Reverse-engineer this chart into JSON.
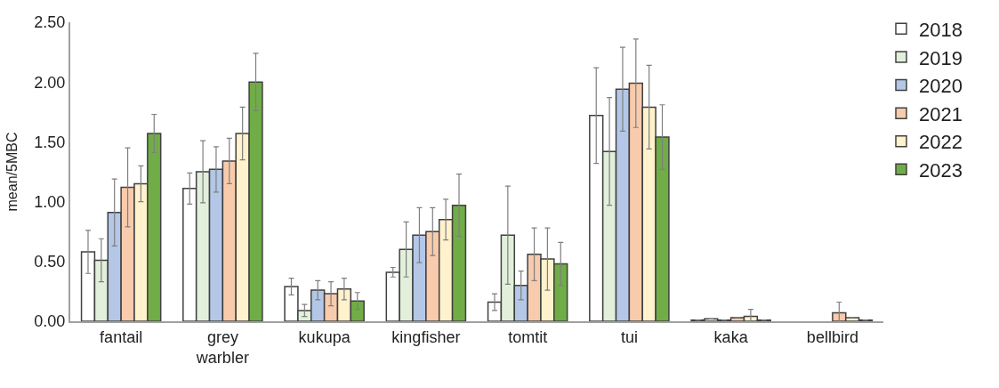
{
  "chart_data": {
    "type": "bar",
    "ylabel": "mean/5MBC",
    "categories": [
      "fantail",
      "grey\nwarbler",
      "kukupa",
      "kingfisher",
      "tomtit",
      "tui",
      "kaka",
      "bellbird"
    ],
    "series": [
      {
        "name": "2018",
        "color": "#ffffff",
        "values": [
          0.58,
          1.11,
          0.29,
          0.41,
          0.16,
          1.72,
          0.01,
          null
        ],
        "errors": [
          0.18,
          0.13,
          0.07,
          0.04,
          0.07,
          0.4,
          null,
          null
        ]
      },
      {
        "name": "2019",
        "color": "#e2efda",
        "values": [
          0.51,
          1.25,
          0.09,
          0.6,
          0.72,
          1.42,
          0.02,
          null
        ],
        "errors": [
          0.18,
          0.26,
          0.05,
          0.23,
          0.41,
          0.45,
          null,
          null
        ]
      },
      {
        "name": "2020",
        "color": "#b4c7e7",
        "values": [
          0.91,
          1.27,
          0.26,
          0.72,
          0.3,
          1.94,
          0.01,
          null
        ],
        "errors": [
          0.28,
          0.19,
          0.08,
          0.23,
          0.12,
          0.35,
          null,
          null
        ]
      },
      {
        "name": "2021",
        "color": "#f8cbad",
        "values": [
          1.12,
          1.34,
          0.23,
          0.75,
          0.56,
          1.99,
          0.03,
          0.07
        ],
        "errors": [
          0.33,
          0.19,
          0.1,
          0.2,
          0.22,
          0.37,
          null,
          0.09
        ]
      },
      {
        "name": "2022",
        "color": "#fff2cc",
        "values": [
          1.15,
          1.57,
          0.27,
          0.85,
          0.52,
          1.79,
          0.04,
          0.03
        ],
        "errors": [
          0.15,
          0.22,
          0.09,
          0.17,
          0.26,
          0.35,
          0.06,
          null
        ]
      },
      {
        "name": "2023",
        "color": "#70ad47",
        "values": [
          1.57,
          2.0,
          0.17,
          0.97,
          0.48,
          1.54,
          0.01,
          0.01
        ],
        "errors": [
          0.16,
          0.24,
          0.07,
          0.26,
          0.18,
          0.27,
          null,
          null
        ]
      }
    ],
    "ylim": [
      0,
      2.5
    ],
    "yticks": [
      {
        "value": 0,
        "label": "0.00"
      },
      {
        "value": 0.5,
        "label": "0.50"
      },
      {
        "value": 1,
        "label": "1.00"
      },
      {
        "value": 1.5,
        "label": "1.50"
      },
      {
        "value": 2,
        "label": "2.00"
      },
      {
        "value": 2.5,
        "label": "2.50"
      }
    ],
    "legend": "top right"
  }
}
